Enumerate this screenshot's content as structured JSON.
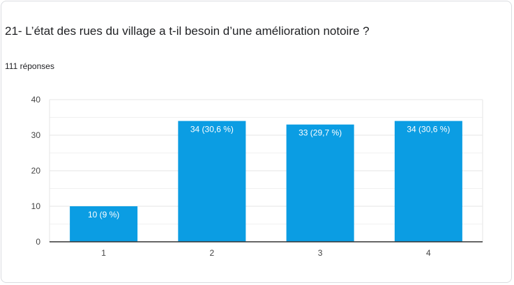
{
  "question": {
    "title": "21- L’état des rues du village a t-il besoin d’une amélioration notoire ?",
    "response_count": "111 réponses"
  },
  "colors": {
    "bar": "#0b9de3",
    "grid": "#e6e6e6",
    "axis": "#333333"
  },
  "chart_data": {
    "type": "bar",
    "categories": [
      "1",
      "2",
      "3",
      "4"
    ],
    "values": [
      10,
      34,
      33,
      34
    ],
    "data_labels": [
      "10 (9 %)",
      "34 (30,6 %)",
      "33 (29,7 %)",
      "34 (30,6 %)"
    ],
    "yticks": [
      0,
      10,
      20,
      30,
      40
    ],
    "ylim": [
      0,
      40
    ],
    "grid": true,
    "legend": "none",
    "title": "",
    "xlabel": "",
    "ylabel": ""
  }
}
